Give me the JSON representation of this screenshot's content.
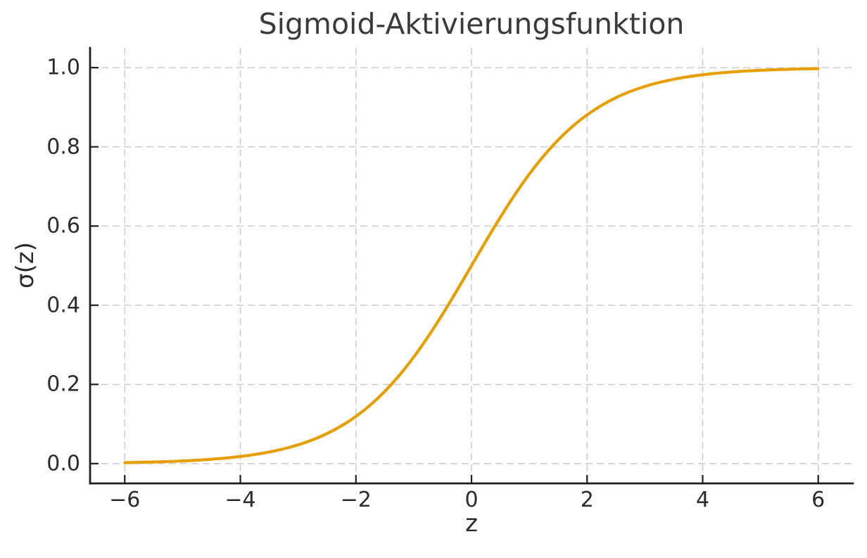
{
  "chart_data": {
    "type": "line",
    "title": "Sigmoid-Aktivierungsfunktion",
    "xlabel": "z",
    "ylabel": "σ(z)",
    "xlim": [
      -6.6,
      6.6
    ],
    "ylim": [
      -0.05,
      1.05
    ],
    "grid": true,
    "grid_style": "dashed",
    "legend": "none",
    "xticks": {
      "values": [
        -6,
        -4,
        -2,
        0,
        2,
        4,
        6
      ],
      "labels": [
        "−6",
        "−4",
        "−2",
        "0",
        "2",
        "4",
        "6"
      ]
    },
    "yticks": {
      "values": [
        0.0,
        0.2,
        0.4,
        0.6,
        0.8,
        1.0
      ],
      "labels": [
        "0.0",
        "0.2",
        "0.4",
        "0.6",
        "0.8",
        "1.0"
      ]
    },
    "series": [
      {
        "name": "sigmoid",
        "color": "#E69F00",
        "x": [
          -6,
          -5.75,
          -5.5,
          -5.25,
          -5,
          -4.75,
          -4.5,
          -4.25,
          -4,
          -3.75,
          -3.5,
          -3.25,
          -3,
          -2.75,
          -2.5,
          -2.25,
          -2,
          -1.75,
          -1.5,
          -1.25,
          -1,
          -0.75,
          -0.5,
          -0.25,
          0,
          0.25,
          0.5,
          0.75,
          1,
          1.25,
          1.5,
          1.75,
          2,
          2.25,
          2.5,
          2.75,
          3,
          3.25,
          3.5,
          3.75,
          4,
          4.25,
          4.5,
          4.75,
          5,
          5.25,
          5.5,
          5.75,
          6
        ],
        "y": [
          0.00247,
          0.00317,
          0.00407,
          0.00522,
          0.00669,
          0.00858,
          0.01099,
          0.01406,
          0.01799,
          0.02297,
          0.02931,
          0.03733,
          0.04743,
          0.06009,
          0.07586,
          0.09535,
          0.1192,
          0.14805,
          0.18243,
          0.2227,
          0.26894,
          0.32082,
          0.37754,
          0.43782,
          0.5,
          0.56218,
          0.62246,
          0.67918,
          0.73106,
          0.7773,
          0.81757,
          0.85195,
          0.8808,
          0.90465,
          0.92414,
          0.93991,
          0.95257,
          0.96267,
          0.97069,
          0.97703,
          0.98201,
          0.98594,
          0.98901,
          0.99142,
          0.99331,
          0.99478,
          0.99593,
          0.99683,
          0.99753
        ]
      }
    ]
  },
  "style": {
    "background": "#ffffff",
    "grid_color": "#cccccc",
    "spine_color": "#1f1f1f",
    "text_color": "#2b2b2b",
    "title_color": "#3a3a3a"
  }
}
